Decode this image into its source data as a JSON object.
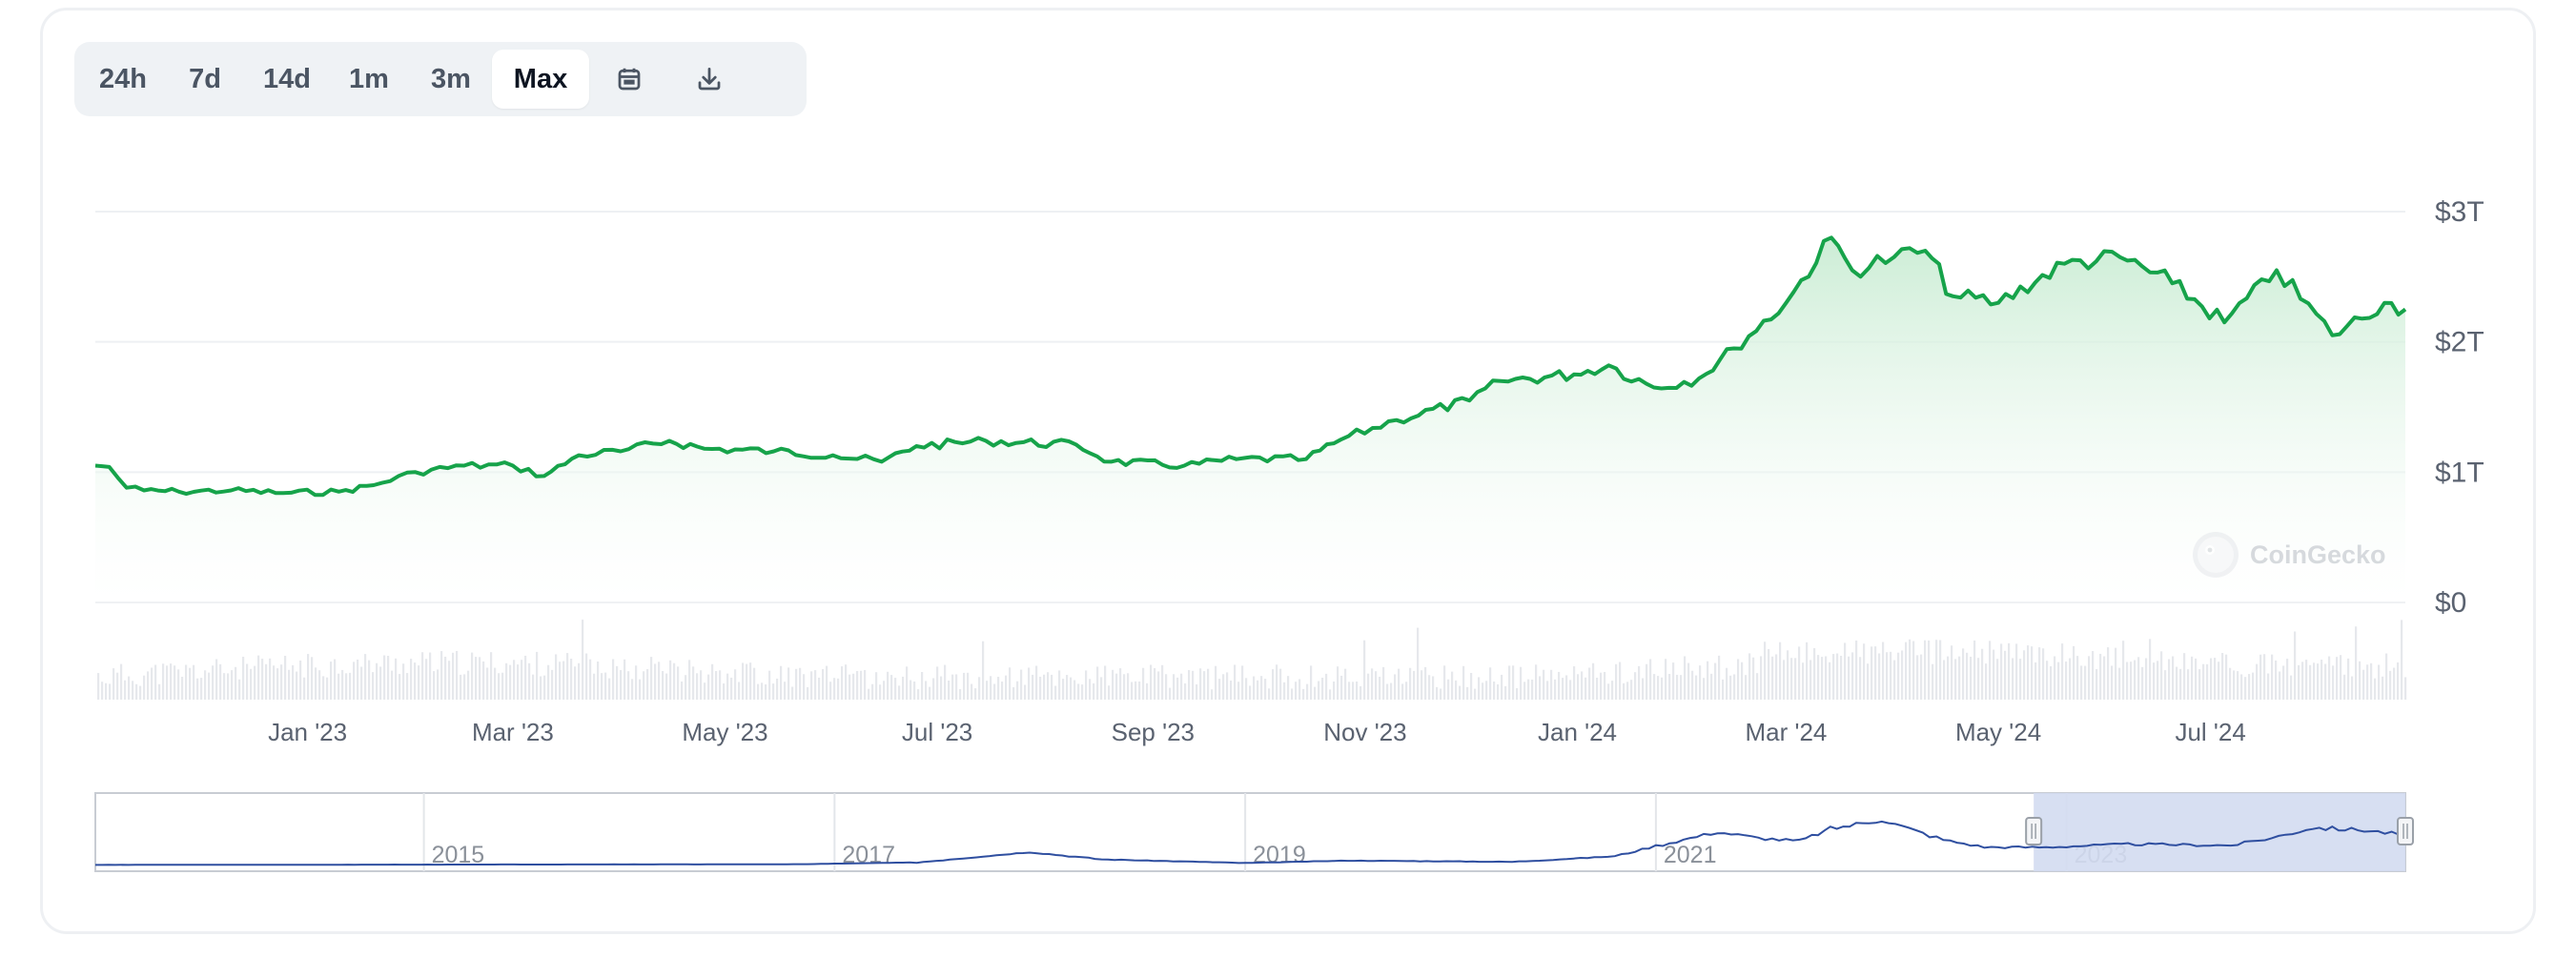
{
  "toolbar": {
    "timeframes": [
      "24h",
      "7d",
      "14d",
      "1m",
      "3m",
      "Max"
    ],
    "active": "Max",
    "icons": [
      "calendar-icon",
      "download-icon"
    ]
  },
  "watermark": "CoinGecko",
  "colors": {
    "line": "#16a34a",
    "fill_top": "#c9ecd3",
    "grid": "#eef0f3",
    "axis_text": "#5a6270",
    "navigator_line": "#2f4fa0",
    "navigator_selection": "#d3dbf1"
  },
  "chart_data": {
    "type": "area",
    "title": "",
    "xlabel": "",
    "ylabel": "",
    "y_unit": "USD",
    "ylim": [
      0,
      3000000000000
    ],
    "y_ticks": [
      {
        "value": 0,
        "label": "$0"
      },
      {
        "value": 1000000000000,
        "label": "$1T"
      },
      {
        "value": 2000000000000,
        "label": "$2T"
      },
      {
        "value": 3000000000000,
        "label": "$3T"
      }
    ],
    "xlim": [
      "2022-11-01",
      "2024-08-26"
    ],
    "x_ticks": [
      {
        "value": "2023-01-01",
        "label": "Jan '23"
      },
      {
        "value": "2023-03-01",
        "label": "Mar '23"
      },
      {
        "value": "2023-05-01",
        "label": "May '23"
      },
      {
        "value": "2023-07-01",
        "label": "Jul '23"
      },
      {
        "value": "2023-09-01",
        "label": "Sep '23"
      },
      {
        "value": "2023-11-01",
        "label": "Nov '23"
      },
      {
        "value": "2024-01-01",
        "label": "Jan '24"
      },
      {
        "value": "2024-03-01",
        "label": "Mar '24"
      },
      {
        "value": "2024-05-01",
        "label": "May '24"
      },
      {
        "value": "2024-07-01",
        "label": "Jul '24"
      }
    ],
    "grid": true,
    "legend": "none",
    "series": [
      {
        "name": "",
        "unit": "USD trillions",
        "points": [
          [
            "2022-11-01",
            1.05
          ],
          [
            "2022-11-05",
            1.04
          ],
          [
            "2022-11-10",
            0.88
          ],
          [
            "2022-11-15",
            0.86
          ],
          [
            "2022-11-25",
            0.85
          ],
          [
            "2022-12-10",
            0.86
          ],
          [
            "2022-12-25",
            0.84
          ],
          [
            "2023-01-10",
            0.85
          ],
          [
            "2023-01-20",
            0.9
          ],
          [
            "2023-02-01",
            1.0
          ],
          [
            "2023-02-15",
            1.05
          ],
          [
            "2023-03-01",
            1.05
          ],
          [
            "2023-03-10",
            0.97
          ],
          [
            "2023-03-20",
            1.13
          ],
          [
            "2023-04-01",
            1.16
          ],
          [
            "2023-04-15",
            1.24
          ],
          [
            "2023-04-25",
            1.18
          ],
          [
            "2023-05-15",
            1.16
          ],
          [
            "2023-06-01",
            1.13
          ],
          [
            "2023-06-15",
            1.08
          ],
          [
            "2023-06-25",
            1.2
          ],
          [
            "2023-07-15",
            1.24
          ],
          [
            "2023-08-10",
            1.21
          ],
          [
            "2023-08-20",
            1.08
          ],
          [
            "2023-09-10",
            1.05
          ],
          [
            "2023-09-25",
            1.1
          ],
          [
            "2023-10-15",
            1.1
          ],
          [
            "2023-10-25",
            1.25
          ],
          [
            "2023-11-10",
            1.4
          ],
          [
            "2023-12-01",
            1.55
          ],
          [
            "2023-12-10",
            1.7
          ],
          [
            "2023-12-31",
            1.75
          ],
          [
            "2024-01-10",
            1.82
          ],
          [
            "2024-01-23",
            1.65
          ],
          [
            "2024-02-05",
            1.72
          ],
          [
            "2024-02-15",
            1.95
          ],
          [
            "2024-03-01",
            2.3
          ],
          [
            "2024-03-14",
            2.8
          ],
          [
            "2024-03-20",
            2.55
          ],
          [
            "2024-04-01",
            2.65
          ],
          [
            "2024-04-10",
            2.7
          ],
          [
            "2024-04-18",
            2.35
          ],
          [
            "2024-05-01",
            2.3
          ],
          [
            "2024-05-20",
            2.6
          ],
          [
            "2024-06-05",
            2.65
          ],
          [
            "2024-06-20",
            2.45
          ],
          [
            "2024-07-05",
            2.15
          ],
          [
            "2024-07-20",
            2.55
          ],
          [
            "2024-08-05",
            2.05
          ],
          [
            "2024-08-20",
            2.3
          ],
          [
            "2024-08-26",
            2.25
          ]
        ]
      }
    ],
    "volume_bars": true,
    "navigator": {
      "labels": [
        "2015",
        "2017",
        "2019",
        "2021",
        "2023"
      ],
      "selected_range": [
        "2022-11-01",
        "2024-08-26"
      ]
    }
  }
}
